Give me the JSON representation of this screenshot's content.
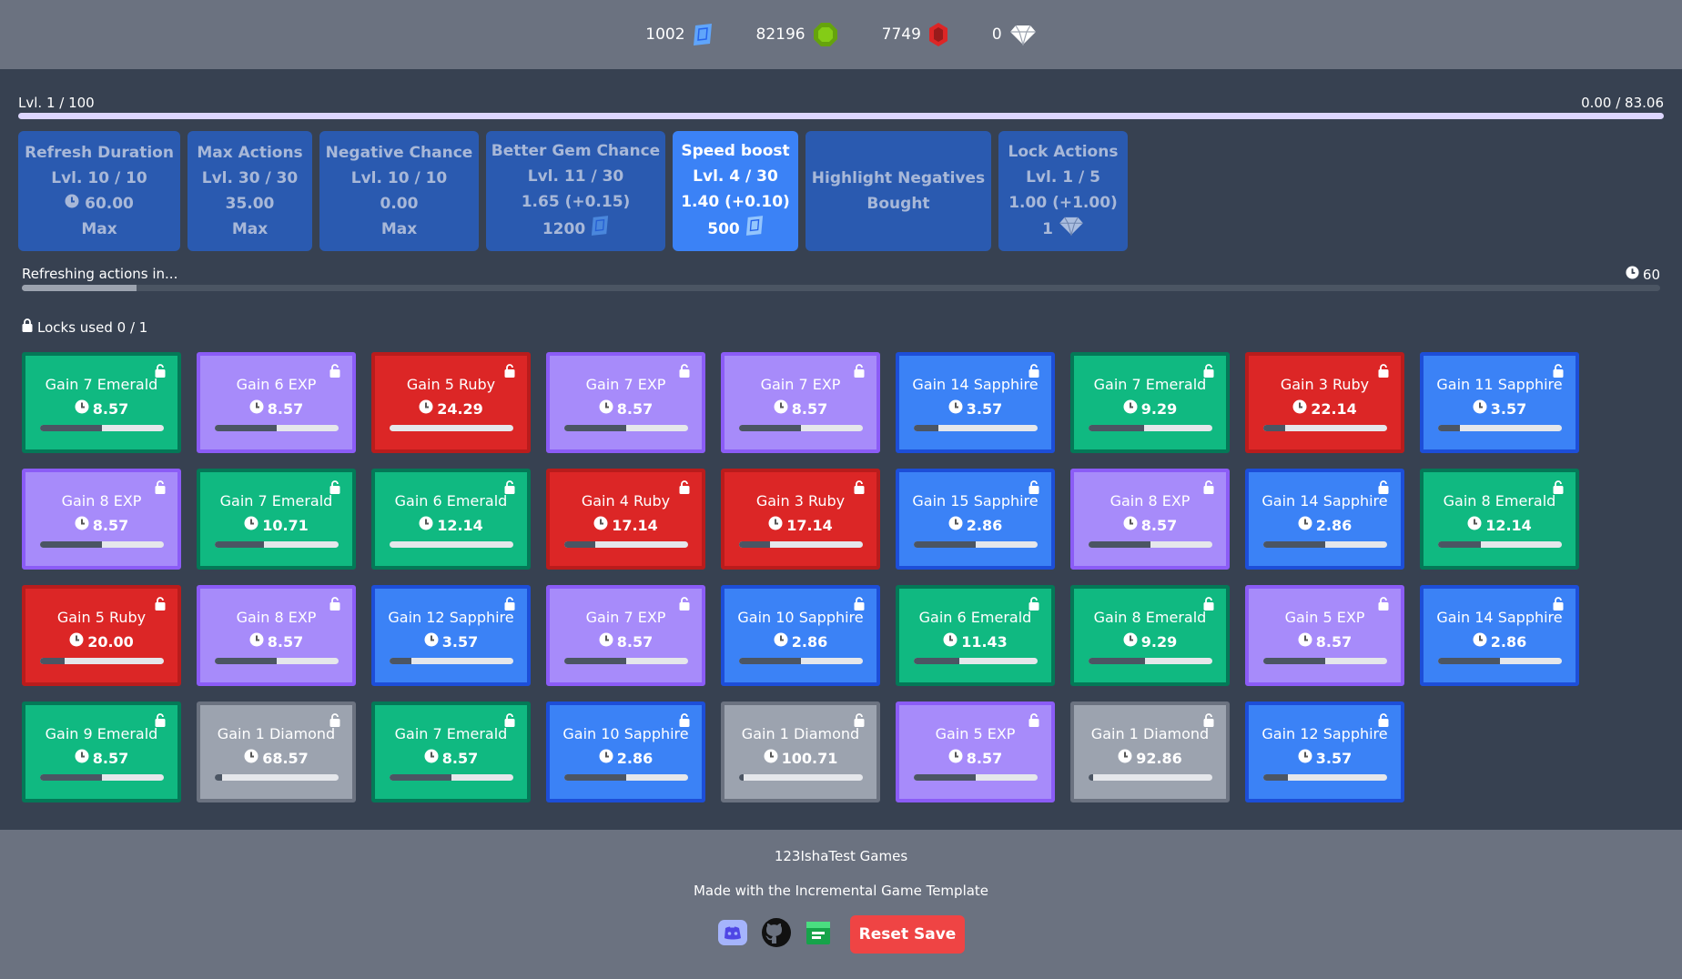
{
  "colors": {
    "topbar": "#6b7280",
    "background": "#374151",
    "upgrade_inactive": "#2a5ab0",
    "upgrade_active": "#3b82f6",
    "emerald": "#10b981",
    "exp": "#a78bfa",
    "ruby": "#dc2626",
    "sapphire": "#3b82f6",
    "diamond": "#9ca3af",
    "reset": "#ef4444"
  },
  "currencies": [
    {
      "value": "1002",
      "icon": "sapphire-gem-icon"
    },
    {
      "value": "82196",
      "icon": "emerald-gem-icon"
    },
    {
      "value": "7749",
      "icon": "ruby-gem-icon"
    },
    {
      "value": "0",
      "icon": "diamond-icon"
    }
  ],
  "level": {
    "label": "Lvl. 1 / 100",
    "exp": "0.00 / 83.06",
    "progress": 0
  },
  "upgrades": [
    {
      "name": "Refresh Duration",
      "level": "Lvl. 10 / 10",
      "value": "60.00",
      "value_icon": "clock-icon",
      "cost": "Max",
      "active": false
    },
    {
      "name": "Max Actions",
      "level": "Lvl. 30 / 30",
      "value": "35.00",
      "cost": "Max",
      "active": false
    },
    {
      "name": "Negative Chance",
      "level": "Lvl. 10 / 10",
      "value": "0.00",
      "cost": "Max",
      "active": false
    },
    {
      "name": "Better Gem Chance",
      "level": "Lvl. 11 / 30",
      "value": "1.65 (+0.15)",
      "cost": "1200",
      "cost_icon": "sapphire-gem-icon",
      "active": false
    },
    {
      "name": "Speed boost",
      "level": "Lvl. 4 / 30",
      "value": "1.40 (+0.10)",
      "cost": "500",
      "cost_icon": "sapphire-gem-icon",
      "active": true
    },
    {
      "name": "Highlight Negatives",
      "status": "Bought",
      "active": false
    },
    {
      "name": "Lock Actions",
      "level": "Lvl. 1 / 5",
      "value": "1.00 (+1.00)",
      "cost": "1",
      "cost_icon": "diamond-icon",
      "active": false
    }
  ],
  "refresh": {
    "label": "Refreshing actions in...",
    "time": "60",
    "progress": 0.07
  },
  "locks": {
    "label": "Locks used 0 / 1"
  },
  "actions": [
    {
      "title": "Gain 7 Emerald",
      "time": "8.57",
      "type": "emerald",
      "progress": 0.5
    },
    {
      "title": "Gain 6 EXP",
      "time": "8.57",
      "type": "exp",
      "progress": 0.5
    },
    {
      "title": "Gain 5 Ruby",
      "time": "24.29",
      "type": "ruby",
      "progress": 0.0
    },
    {
      "title": "Gain 7 EXP",
      "time": "8.57",
      "type": "exp",
      "progress": 0.5
    },
    {
      "title": "Gain 7 EXP",
      "time": "8.57",
      "type": "exp",
      "progress": 0.5
    },
    {
      "title": "Gain 14 Sapphire",
      "time": "3.57",
      "type": "sapphire",
      "progress": 0.2
    },
    {
      "title": "Gain 7 Emerald",
      "time": "9.29",
      "type": "emerald",
      "progress": 0.45
    },
    {
      "title": "Gain 3 Ruby",
      "time": "22.14",
      "type": "ruby",
      "progress": 0.18
    },
    {
      "title": "Gain 11 Sapphire",
      "time": "3.57",
      "type": "sapphire",
      "progress": 0.18
    },
    {
      "title": "Gain 8 EXP",
      "time": "8.57",
      "type": "exp",
      "progress": 0.5
    },
    {
      "title": "Gain 7 Emerald",
      "time": "10.71",
      "type": "emerald",
      "progress": 0.4
    },
    {
      "title": "Gain 6 Emerald",
      "time": "12.14",
      "type": "emerald",
      "progress": 0.0
    },
    {
      "title": "Gain 4 Ruby",
      "time": "17.14",
      "type": "ruby",
      "progress": 0.25
    },
    {
      "title": "Gain 3 Ruby",
      "time": "17.14",
      "type": "ruby",
      "progress": 0.25
    },
    {
      "title": "Gain 15 Sapphire",
      "time": "2.86",
      "type": "sapphire",
      "progress": 0.5
    },
    {
      "title": "Gain 8 EXP",
      "time": "8.57",
      "type": "exp",
      "progress": 0.5
    },
    {
      "title": "Gain 14 Sapphire",
      "time": "2.86",
      "type": "sapphire",
      "progress": 0.5
    },
    {
      "title": "Gain 8 Emerald",
      "time": "12.14",
      "type": "emerald",
      "progress": 0.35
    },
    {
      "title": "Gain 5 Ruby",
      "time": "20.00",
      "type": "ruby",
      "progress": 0.2
    },
    {
      "title": "Gain 8 EXP",
      "time": "8.57",
      "type": "exp",
      "progress": 0.5
    },
    {
      "title": "Gain 12 Sapphire",
      "time": "3.57",
      "type": "sapphire",
      "progress": 0.18
    },
    {
      "title": "Gain 7 EXP",
      "time": "8.57",
      "type": "exp",
      "progress": 0.5
    },
    {
      "title": "Gain 10 Sapphire",
      "time": "2.86",
      "type": "sapphire",
      "progress": 0.5
    },
    {
      "title": "Gain 6 Emerald",
      "time": "11.43",
      "type": "emerald",
      "progress": 0.37
    },
    {
      "title": "Gain 8 Emerald",
      "time": "9.29",
      "type": "emerald",
      "progress": 0.46
    },
    {
      "title": "Gain 5 EXP",
      "time": "8.57",
      "type": "exp",
      "progress": 0.5
    },
    {
      "title": "Gain 14 Sapphire",
      "time": "2.86",
      "type": "sapphire",
      "progress": 0.5
    },
    {
      "title": "Gain 9 Emerald",
      "time": "8.57",
      "type": "emerald",
      "progress": 0.5
    },
    {
      "title": "Gain 1 Diamond",
      "time": "68.57",
      "type": "diamond",
      "progress": 0.06
    },
    {
      "title": "Gain 7 Emerald",
      "time": "8.57",
      "type": "emerald",
      "progress": 0.5
    },
    {
      "title": "Gain 10 Sapphire",
      "time": "2.86",
      "type": "sapphire",
      "progress": 0.5
    },
    {
      "title": "Gain 1 Diamond",
      "time": "100.71",
      "type": "diamond",
      "progress": 0.04
    },
    {
      "title": "Gain 5 EXP",
      "time": "8.57",
      "type": "exp",
      "progress": 0.5
    },
    {
      "title": "Gain 1 Diamond",
      "time": "92.86",
      "type": "diamond",
      "progress": 0.04
    },
    {
      "title": "Gain 12 Sapphire",
      "time": "3.57",
      "type": "sapphire",
      "progress": 0.2
    }
  ],
  "footer": {
    "credit": "123IshaTest Games",
    "made_with": "Made with the Incremental Game Template",
    "links": [
      "discord-icon",
      "github-icon",
      "itchio-icon"
    ],
    "reset_label": "Reset Save"
  }
}
